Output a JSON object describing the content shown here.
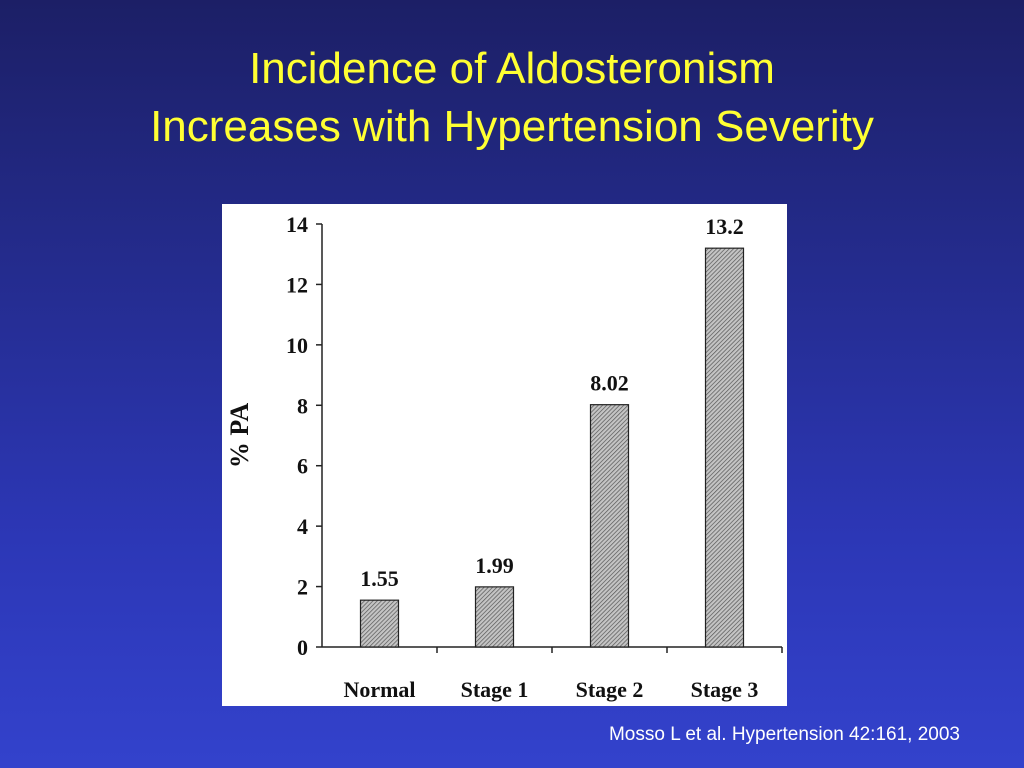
{
  "slide": {
    "title_line1": "Incidence of Aldosteronism",
    "title_line2": "Increases with Hypertension Severity",
    "citation": "Mosso L et al. Hypertension 42:161, 2003"
  },
  "colors": {
    "background_top": "#1c1f66",
    "background_bottom": "#3342cc",
    "title": "#ffff33",
    "citation": "#ffffff",
    "chart_panel": "#ffffff",
    "bar_fill": "#9a9a9a"
  },
  "chart_data": {
    "type": "bar",
    "categories": [
      "Normal",
      "Stage 1",
      "Stage 2",
      "Stage 3"
    ],
    "values": [
      1.55,
      1.99,
      8.02,
      13.2
    ],
    "data_labels": [
      "1.55",
      "1.99",
      "8.02",
      "13.2"
    ],
    "title": "",
    "xlabel": "",
    "ylabel": "% PA",
    "ylim": [
      0,
      14
    ],
    "yticks": [
      0,
      2,
      4,
      6,
      8,
      10,
      12,
      14
    ],
    "grid": false,
    "legend": "none",
    "bar_pattern": "diagonal-hatch"
  }
}
